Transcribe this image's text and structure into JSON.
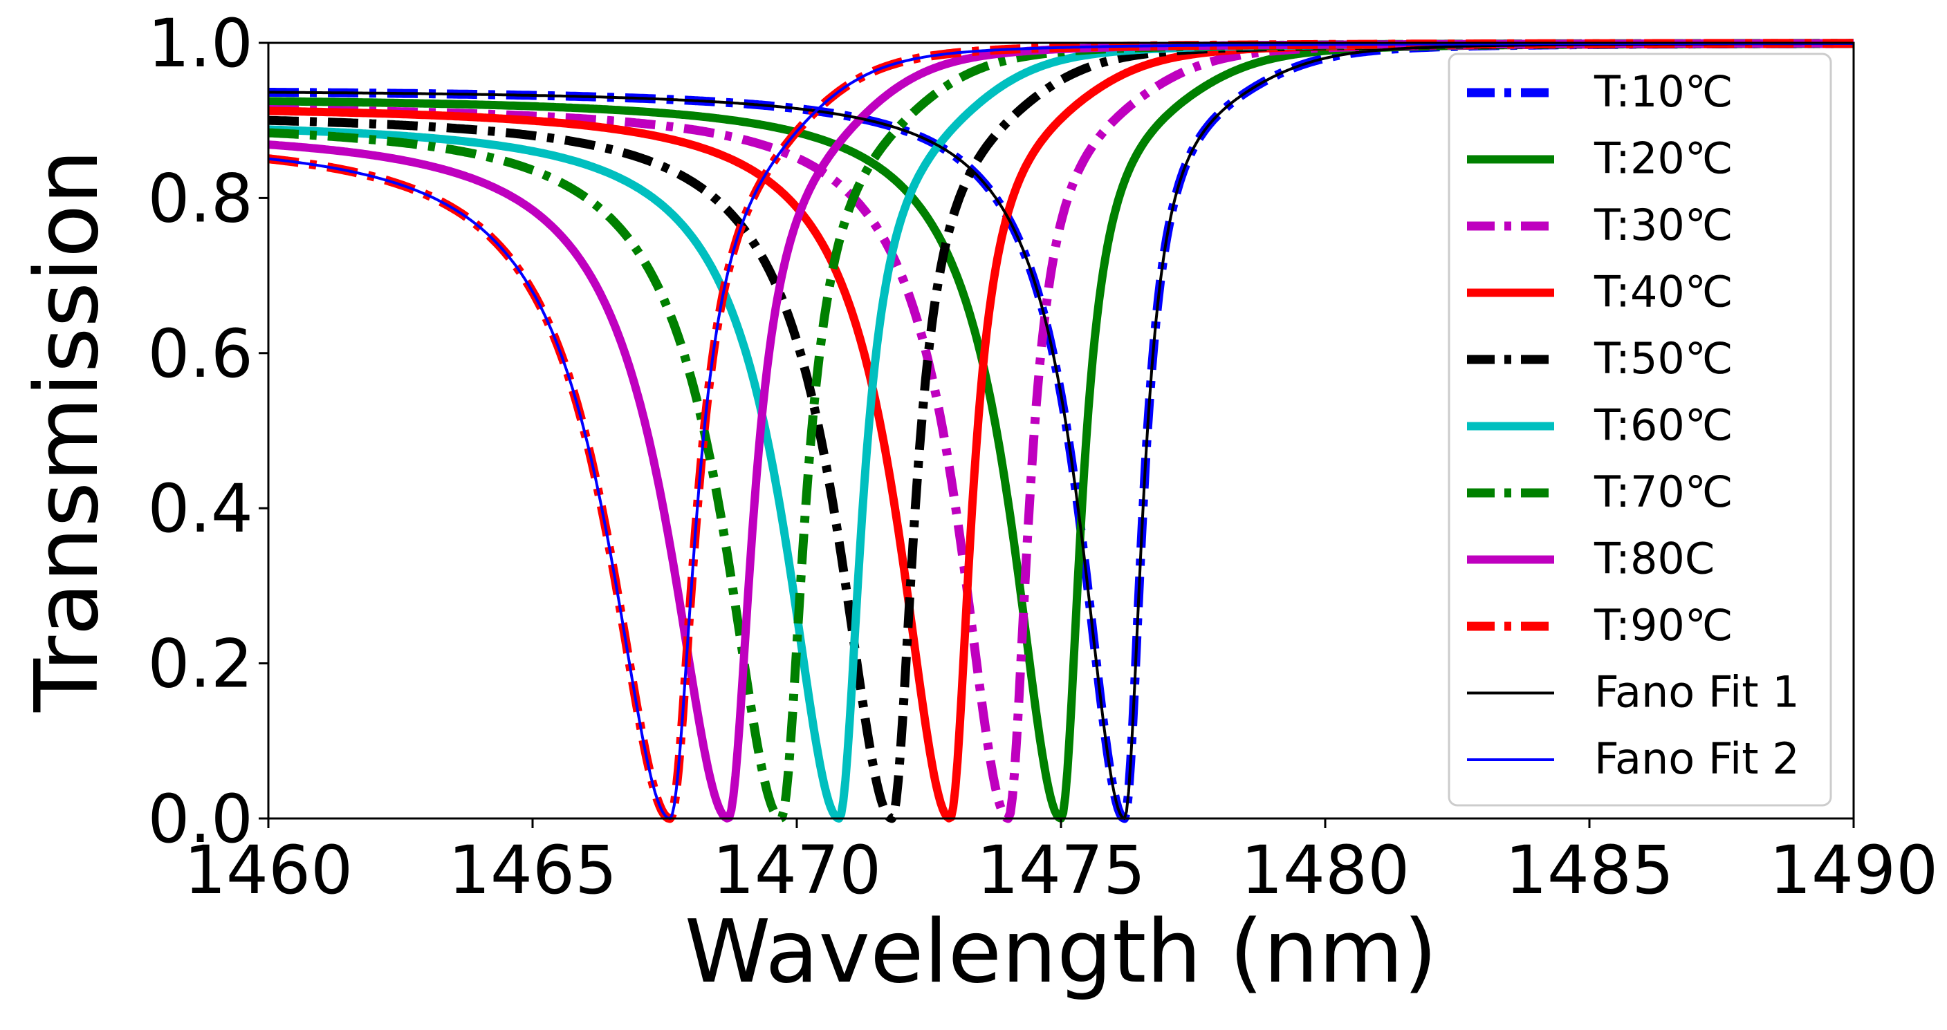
{
  "chart_data": {
    "type": "line",
    "title": "",
    "xlabel": "Wavelength (nm)",
    "ylabel": "Transmission",
    "xlim": [
      1460,
      1490
    ],
    "ylim": [
      0.0,
      1.0
    ],
    "xticks": [
      1460,
      1465,
      1470,
      1475,
      1480,
      1485,
      1490
    ],
    "yticks": [
      0.0,
      0.2,
      0.4,
      0.6,
      0.8,
      1.0
    ],
    "xtick_labels": [
      "1460",
      "1465",
      "1470",
      "1475",
      "1480",
      "1485",
      "1490"
    ],
    "ytick_labels": [
      "0.0",
      "0.2",
      "0.4",
      "0.6",
      "0.8",
      "1.0"
    ],
    "grid": false,
    "legend_position": "top-right",
    "series": [
      {
        "name": "T:10℃",
        "color": "#0000ff",
        "dash": "dashdot",
        "center": 1476.2,
        "width": 0.9,
        "baseline": 0.94,
        "skew": 0.6,
        "drop": 1.0
      },
      {
        "name": "T:20℃",
        "color": "#008000",
        "dash": "solid",
        "center": 1475.0,
        "width": 1.0,
        "baseline": 0.93,
        "skew": 0.6,
        "drop": 1.0
      },
      {
        "name": "T:30℃",
        "color": "#bf00bf",
        "dash": "dashdot",
        "center": 1474.0,
        "width": 1.0,
        "baseline": 0.92,
        "skew": 0.6,
        "drop": 1.0
      },
      {
        "name": "T:40℃",
        "color": "#ff0000",
        "dash": "solid",
        "center": 1472.9,
        "width": 1.05,
        "baseline": 0.92,
        "skew": 0.6,
        "drop": 1.0
      },
      {
        "name": "T:50℃",
        "color": "#000000",
        "dash": "dashdot",
        "center": 1471.8,
        "width": 1.1,
        "baseline": 0.91,
        "skew": 0.6,
        "drop": 1.0
      },
      {
        "name": "T:60℃",
        "color": "#00bfbf",
        "dash": "solid",
        "center": 1470.8,
        "width": 1.1,
        "baseline": 0.9,
        "skew": 0.6,
        "drop": 1.0
      },
      {
        "name": "T:70℃",
        "color": "#008000",
        "dash": "dashdot",
        "center": 1469.7,
        "width": 1.15,
        "baseline": 0.9,
        "skew": 0.6,
        "drop": 1.0
      },
      {
        "name": "T:80C",
        "color": "#bf00bf",
        "dash": "solid",
        "center": 1468.7,
        "width": 1.2,
        "baseline": 0.89,
        "skew": 0.6,
        "drop": 1.0
      },
      {
        "name": "T:90℃",
        "color": "#ff0000",
        "dash": "dashdot",
        "center": 1467.6,
        "width": 1.25,
        "baseline": 0.88,
        "skew": 0.6,
        "drop": 1.0
      },
      {
        "name": "Fano Fit 1",
        "color": "#000000",
        "dash": "thin",
        "center": 1476.2,
        "width": 0.9,
        "baseline": 0.94,
        "skew": 0.6,
        "drop": 1.0
      },
      {
        "name": "Fano Fit 2",
        "color": "#0000ff",
        "dash": "thin",
        "center": 1467.6,
        "width": 1.25,
        "baseline": 0.88,
        "skew": 0.6,
        "drop": 1.0
      }
    ]
  }
}
